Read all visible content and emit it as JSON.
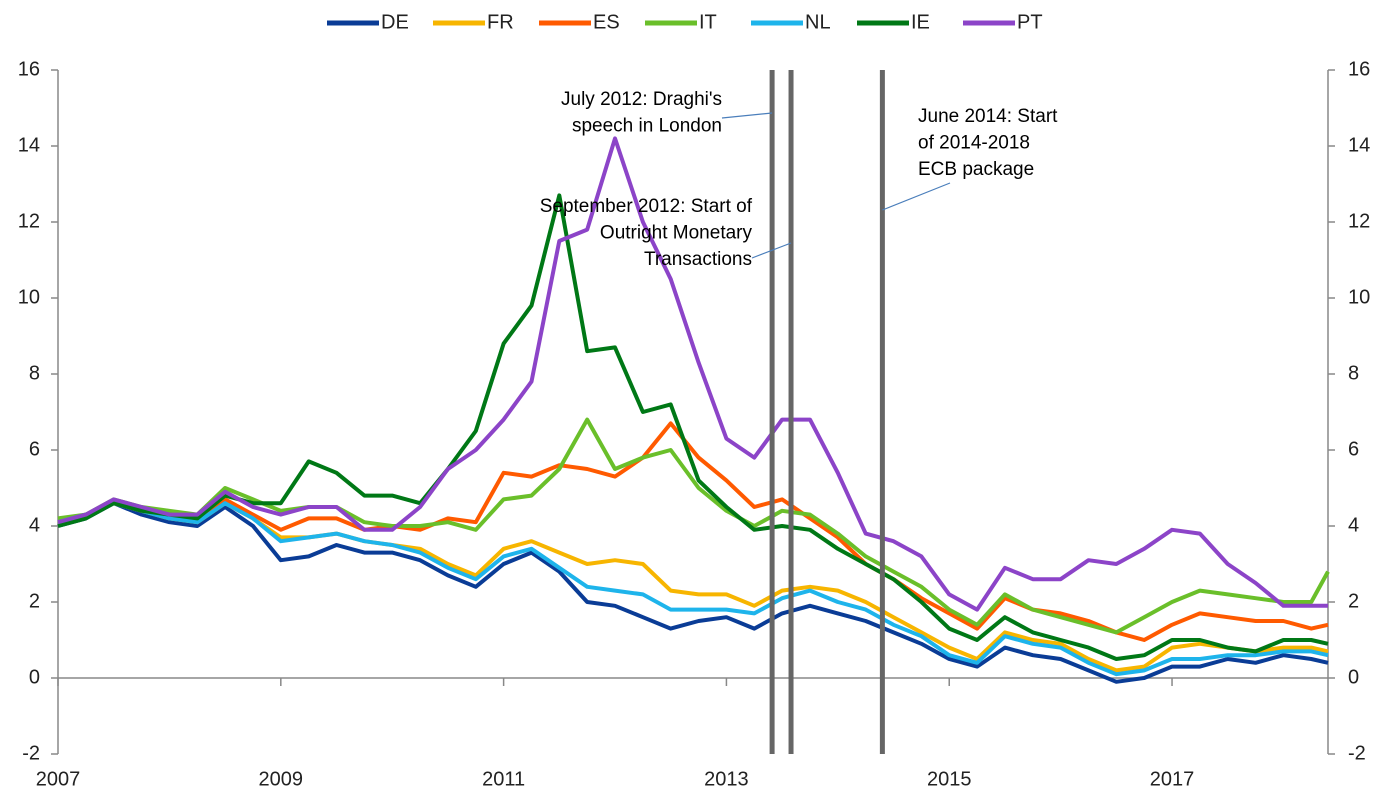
{
  "chart_data": {
    "type": "line",
    "x": [
      2007,
      2007.25,
      2007.5,
      2007.75,
      2008,
      2008.25,
      2008.5,
      2008.75,
      2009,
      2009.25,
      2009.5,
      2009.75,
      2010,
      2010.25,
      2010.5,
      2010.75,
      2011,
      2011.25,
      2011.5,
      2011.75,
      2012,
      2012.25,
      2012.5,
      2012.75,
      2013,
      2013.25,
      2013.5,
      2013.75,
      2014,
      2014.25,
      2014.5,
      2014.75,
      2015,
      2015.25,
      2015.5,
      2015.75,
      2016,
      2016.25,
      2016.5,
      2016.75,
      2017,
      2017.25,
      2017.5,
      2017.75,
      2018,
      2018.25,
      2018.4
    ],
    "series": [
      {
        "name": "DE",
        "color": "#0a3c96",
        "values": [
          4.0,
          4.2,
          4.6,
          4.3,
          4.1,
          4.0,
          4.5,
          4.0,
          3.1,
          3.2,
          3.5,
          3.3,
          3.3,
          3.1,
          2.7,
          2.4,
          3.0,
          3.3,
          2.8,
          2.0,
          1.9,
          1.6,
          1.3,
          1.5,
          1.6,
          1.3,
          1.7,
          1.9,
          1.7,
          1.5,
          1.2,
          0.9,
          0.5,
          0.3,
          0.8,
          0.6,
          0.5,
          0.2,
          -0.1,
          0.0,
          0.3,
          0.3,
          0.5,
          0.4,
          0.6,
          0.5,
          0.4
        ]
      },
      {
        "name": "FR",
        "color": "#f7b500",
        "values": [
          4.1,
          4.3,
          4.6,
          4.4,
          4.2,
          4.1,
          4.6,
          4.2,
          3.7,
          3.7,
          3.8,
          3.6,
          3.5,
          3.4,
          3.0,
          2.7,
          3.4,
          3.6,
          3.3,
          3.0,
          3.1,
          3.0,
          2.3,
          2.2,
          2.2,
          1.9,
          2.3,
          2.4,
          2.3,
          2.0,
          1.6,
          1.2,
          0.8,
          0.5,
          1.2,
          1.0,
          0.9,
          0.5,
          0.2,
          0.3,
          0.8,
          0.9,
          0.8,
          0.7,
          0.8,
          0.8,
          0.7
        ]
      },
      {
        "name": "ES",
        "color": "#ff5a00",
        "values": [
          4.1,
          4.3,
          4.6,
          4.4,
          4.3,
          4.2,
          4.7,
          4.3,
          3.9,
          4.2,
          4.2,
          3.9,
          4.0,
          3.9,
          4.2,
          4.1,
          5.4,
          5.3,
          5.6,
          5.5,
          5.3,
          5.8,
          6.7,
          5.8,
          5.2,
          4.5,
          4.7,
          4.2,
          3.7,
          3.0,
          2.6,
          2.1,
          1.7,
          1.3,
          2.1,
          1.8,
          1.7,
          1.5,
          1.2,
          1.0,
          1.4,
          1.7,
          1.6,
          1.5,
          1.5,
          1.3,
          1.4
        ]
      },
      {
        "name": "IT",
        "color": "#6abf2a",
        "values": [
          4.2,
          4.3,
          4.7,
          4.5,
          4.4,
          4.3,
          5.0,
          4.7,
          4.4,
          4.5,
          4.5,
          4.1,
          4.0,
          4.0,
          4.1,
          3.9,
          4.7,
          4.8,
          5.5,
          6.8,
          5.5,
          5.8,
          6.0,
          5.0,
          4.4,
          4.0,
          4.4,
          4.3,
          3.8,
          3.2,
          2.8,
          2.4,
          1.8,
          1.4,
          2.2,
          1.8,
          1.6,
          1.4,
          1.2,
          1.6,
          2.0,
          2.3,
          2.2,
          2.1,
          2.0,
          2.0,
          2.8
        ]
      },
      {
        "name": "NL",
        "color": "#1eb4eb",
        "values": [
          4.1,
          4.3,
          4.6,
          4.4,
          4.2,
          4.1,
          4.6,
          4.2,
          3.6,
          3.7,
          3.8,
          3.6,
          3.5,
          3.3,
          2.9,
          2.6,
          3.2,
          3.4,
          2.9,
          2.4,
          2.3,
          2.2,
          1.8,
          1.8,
          1.8,
          1.7,
          2.1,
          2.3,
          2.0,
          1.8,
          1.4,
          1.1,
          0.6,
          0.4,
          1.1,
          0.9,
          0.8,
          0.4,
          0.1,
          0.2,
          0.5,
          0.5,
          0.6,
          0.6,
          0.7,
          0.7,
          0.6
        ]
      },
      {
        "name": "IE",
        "color": "#007816",
        "values": [
          4.0,
          4.2,
          4.6,
          4.4,
          4.3,
          4.2,
          4.8,
          4.6,
          4.6,
          5.7,
          5.4,
          4.8,
          4.8,
          4.6,
          5.5,
          6.5,
          8.8,
          9.8,
          12.7,
          8.6,
          8.7,
          7.0,
          7.2,
          5.2,
          4.5,
          3.9,
          4.0,
          3.9,
          3.4,
          3.0,
          2.6,
          2.0,
          1.3,
          1.0,
          1.6,
          1.2,
          1.0,
          0.8,
          0.5,
          0.6,
          1.0,
          1.0,
          0.8,
          0.7,
          1.0,
          1.0,
          0.9
        ]
      },
      {
        "name": "PT",
        "color": "#8c44c8",
        "values": [
          4.1,
          4.3,
          4.7,
          4.5,
          4.3,
          4.3,
          4.9,
          4.5,
          4.3,
          4.5,
          4.5,
          3.9,
          3.9,
          4.5,
          5.5,
          6.0,
          6.8,
          7.8,
          11.5,
          11.8,
          14.2,
          12.0,
          10.5,
          8.3,
          6.3,
          5.8,
          6.8,
          6.8,
          5.4,
          3.8,
          3.6,
          3.2,
          2.2,
          1.8,
          2.9,
          2.6,
          2.6,
          3.1,
          3.0,
          3.4,
          3.9,
          3.8,
          3.0,
          2.5,
          1.9,
          1.9,
          1.9
        ]
      }
    ],
    "xlim": [
      2007,
      2018.4
    ],
    "xticks": [
      2007,
      2009,
      2011,
      2013,
      2015,
      2017
    ],
    "ylim": [
      -2,
      16
    ],
    "yticks": [
      -2,
      0,
      2,
      4,
      6,
      8,
      10,
      12,
      14,
      16
    ],
    "y2lim": [
      -2,
      16
    ],
    "y2ticks": [
      -2,
      0,
      2,
      4,
      6,
      8,
      10,
      12,
      14,
      16
    ],
    "legend": "top",
    "events": [
      {
        "x": 2013.41,
        "lines": [
          "July 2012: Draghi's",
          "speech in London"
        ]
      },
      {
        "x": 2013.58,
        "lines": [
          "September 2012: Start of",
          "Outright Monetary",
          "Transactions"
        ]
      },
      {
        "x": 2014.4,
        "lines": [
          "June 2014: Start",
          "of 2014-2018",
          "ECB package"
        ]
      }
    ]
  }
}
